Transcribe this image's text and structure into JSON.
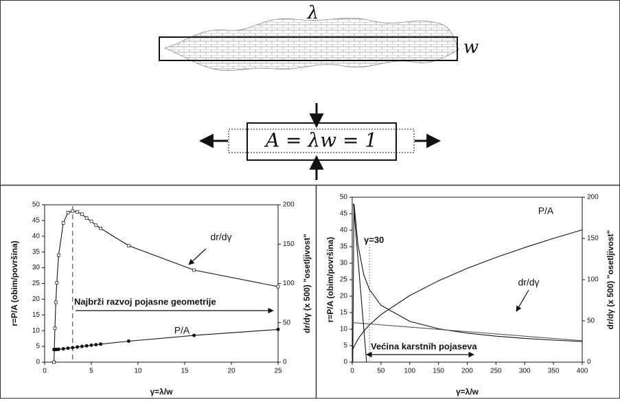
{
  "diagram": {
    "top_label": "λ",
    "width_label": "w",
    "equation": "A = λw = 1"
  },
  "chart_data": [
    {
      "type": "line",
      "x_label": "γ=λ/w",
      "y_label": "r=P/A (obim/površina)",
      "y2_label": "dr/dγ (x 500) \"osetljivost\"",
      "x": [
        1,
        1.1,
        1.2,
        1.3,
        1.5,
        2,
        2.5,
        3,
        3.5,
        4,
        4.5,
        5,
        5.5,
        6,
        9,
        16,
        25
      ],
      "series": [
        {
          "name": "P/A",
          "color": "#111111",
          "marker": "circle",
          "values": [
            4,
            4.0,
            4.02,
            4.03,
            4.08,
            4.24,
            4.43,
            4.62,
            4.81,
            5,
            5.19,
            5.37,
            5.54,
            5.72,
            6.67,
            8.5,
            10.4
          ]
        },
        {
          "name": "dr/dγ",
          "color": "#111111",
          "marker": "square",
          "axis": "y2",
          "values": [
            0,
            43,
            76,
            101,
            136,
            177,
            190,
            192,
            191,
            188,
            183,
            179,
            174,
            170,
            148,
            117,
            96
          ]
        }
      ],
      "xlim": [
        0,
        25
      ],
      "xticks": [
        0,
        5,
        10,
        15,
        20,
        25
      ],
      "ylim": [
        0,
        50
      ],
      "yticks": [
        0,
        5,
        10,
        15,
        20,
        25,
        30,
        35,
        40,
        45,
        50
      ],
      "y2lim": [
        0,
        200
      ],
      "y2ticks": [
        0,
        50,
        100,
        150,
        200
      ],
      "vline": 3,
      "annotations": [
        "Najbrži razvoj pojasne geometrije"
      ]
    },
    {
      "type": "line",
      "x_label": "γ=λ/w",
      "y_label": "r=P/A (obim/površina)",
      "y2_label": "dr/dγ (x 500) \"osetljivost\"",
      "x": [
        1,
        3,
        5,
        10,
        20,
        30,
        50,
        100,
        150,
        200,
        250,
        300,
        350,
        400
      ],
      "series": [
        {
          "name": "P/A",
          "color": "#111111",
          "values": [
            4,
            4.62,
            5.37,
            6.96,
            9.39,
            11.32,
            14.42,
            20.2,
            24.66,
            28.43,
            31.75,
            34.76,
            37.52,
            40.1
          ]
        },
        {
          "name": "dr/dγ",
          "color": "#111111",
          "axis": "y2",
          "values": [
            0,
            192,
            179,
            142,
            106,
            88,
            69,
            49.5,
            40.5,
            35.2,
            31.5,
            28.8,
            26.7,
            25
          ]
        },
        {
          "color": "#555555",
          "x": [
            0,
            400
          ],
          "values": [
            12,
            6.5
          ]
        },
        {
          "color": "#111111",
          "x": [
            2,
            25
          ],
          "values": [
            48,
            0
          ]
        }
      ],
      "xlim": [
        0,
        400
      ],
      "xticks": [
        0,
        50,
        100,
        150,
        200,
        250,
        300,
        350,
        400
      ],
      "ylim": [
        0,
        50
      ],
      "yticks": [
        0,
        5,
        10,
        15,
        20,
        25,
        30,
        35,
        40,
        45,
        50
      ],
      "y2lim": [
        0,
        200
      ],
      "y2ticks": [
        0,
        50,
        100,
        150,
        200
      ],
      "vline": 30,
      "annotations": [
        "γ=30",
        "Većina karstnih pojaseva"
      ]
    }
  ]
}
